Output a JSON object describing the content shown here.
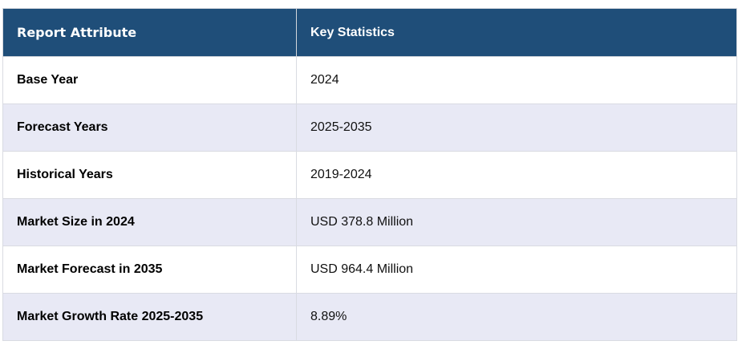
{
  "table": {
    "headers": [
      "Report Attribute",
      "Key Statistics"
    ],
    "rows": [
      [
        "Base Year",
        "2024"
      ],
      [
        "Forecast Years",
        "2025-2035"
      ],
      [
        "Historical Years",
        "2019-2024"
      ],
      [
        "Market Size in 2024",
        "USD 378.8 Million"
      ],
      [
        "Market Forecast in 2035",
        "USD 964.4 Million"
      ],
      [
        "Market Growth Rate 2025-2035",
        "8.89%"
      ]
    ],
    "colors": {
      "header_bg": "#1f4e79",
      "header_text": "#ffffff",
      "row_alt_bg": "#e8e9f5",
      "row_bg": "#ffffff"
    }
  }
}
